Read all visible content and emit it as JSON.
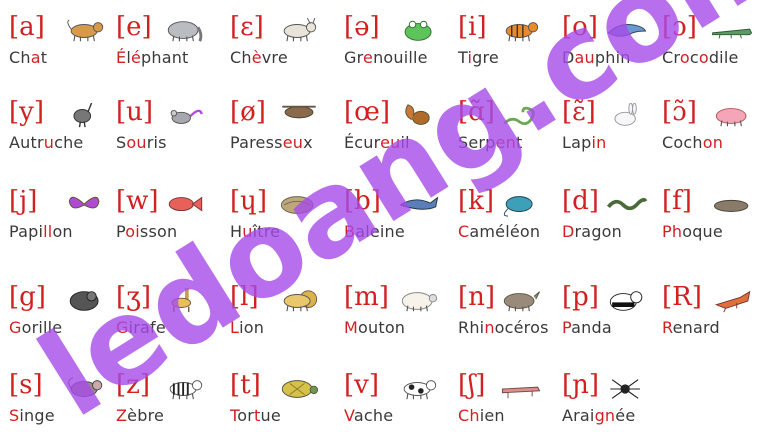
{
  "rows": [
    [
      {
        "ipa": "[a]",
        "animal": "cat-icon",
        "word": [
          [
            "Ch",
            0
          ],
          [
            "a",
            1
          ],
          [
            "t",
            0
          ]
        ]
      },
      {
        "ipa": "[e]",
        "animal": "elephant-icon",
        "word": [
          [
            "É",
            1
          ],
          [
            "l",
            0
          ],
          [
            "é",
            1
          ],
          [
            "phant",
            0
          ]
        ]
      },
      {
        "ipa": "[ɛ]",
        "animal": "goat-icon",
        "word": [
          [
            "Ch",
            0
          ],
          [
            "è",
            1
          ],
          [
            "vre",
            0
          ]
        ]
      },
      {
        "ipa": "[ə]",
        "animal": "frog-icon",
        "word": [
          [
            "Gr",
            0
          ],
          [
            "e",
            1
          ],
          [
            "nouille",
            0
          ]
        ]
      },
      {
        "ipa": "[i]",
        "animal": "tiger-icon",
        "word": [
          [
            "T",
            0
          ],
          [
            "i",
            1
          ],
          [
            "gre",
            0
          ]
        ]
      },
      {
        "ipa": "[o]",
        "animal": "dolphin-icon",
        "word": [
          [
            "D",
            0
          ],
          [
            "au",
            1
          ],
          [
            "phin",
            0
          ]
        ]
      },
      {
        "ipa": "[ɔ]",
        "animal": "crocodile-icon",
        "word": [
          [
            "Cr",
            0
          ],
          [
            "o",
            1
          ],
          [
            "c",
            0
          ],
          [
            "o",
            1
          ],
          [
            "dile",
            0
          ]
        ]
      }
    ],
    [
      {
        "ipa": "[y]",
        "animal": "ostrich-icon",
        "word": [
          [
            "Autr",
            0
          ],
          [
            "u",
            1
          ],
          [
            "che",
            0
          ]
        ]
      },
      {
        "ipa": "[u]",
        "animal": "mouse-icon",
        "word": [
          [
            "S",
            0
          ],
          [
            "ou",
            1
          ],
          [
            "ris",
            0
          ]
        ]
      },
      {
        "ipa": "[ø]",
        "animal": "sloth-icon",
        "word": [
          [
            "Paress",
            0
          ],
          [
            "eu",
            1
          ],
          [
            "x",
            0
          ]
        ]
      },
      {
        "ipa": "[œ]",
        "animal": "squirrel-icon",
        "word": [
          [
            "Écur",
            0
          ],
          [
            "eu",
            1
          ],
          [
            "il",
            0
          ]
        ]
      },
      {
        "ipa": "[ɑ̃]",
        "animal": "snake-icon",
        "word": [
          [
            "Serp",
            0
          ],
          [
            "en",
            1
          ],
          [
            "t",
            0
          ]
        ]
      },
      {
        "ipa": "[ɛ̃]",
        "animal": "rabbit-icon",
        "word": [
          [
            "Lap",
            0
          ],
          [
            "in",
            1
          ]
        ]
      },
      {
        "ipa": "[ɔ̃]",
        "animal": "pig-icon",
        "word": [
          [
            "Coch",
            0
          ],
          [
            "on",
            1
          ]
        ]
      }
    ],
    [
      {
        "ipa": "[j]",
        "animal": "butterfly-icon",
        "word": [
          [
            "Papi",
            0
          ],
          [
            "ll",
            1
          ],
          [
            "on",
            0
          ]
        ]
      },
      {
        "ipa": "[w]",
        "animal": "fish-icon",
        "word": [
          [
            "P",
            0
          ],
          [
            "oi",
            1
          ],
          [
            "sson",
            0
          ]
        ]
      },
      {
        "ipa": "[ɥ]",
        "animal": "oyster-icon",
        "word": [
          [
            "H",
            0
          ],
          [
            "u",
            1
          ],
          [
            "ître",
            0
          ]
        ]
      },
      {
        "ipa": "[b]",
        "animal": "whale-icon",
        "word": [
          [
            "B",
            1
          ],
          [
            "aleine",
            0
          ]
        ]
      },
      {
        "ipa": "[k]",
        "animal": "chameleon-icon",
        "word": [
          [
            "C",
            1
          ],
          [
            "améléon",
            0
          ]
        ]
      },
      {
        "ipa": "[d]",
        "animal": "dragon-icon",
        "word": [
          [
            "D",
            1
          ],
          [
            "ragon",
            0
          ]
        ]
      },
      {
        "ipa": "[f]",
        "animal": "seal-icon",
        "word": [
          [
            "Ph",
            1
          ],
          [
            "oque",
            0
          ]
        ]
      }
    ],
    [
      {
        "ipa": "[g]",
        "animal": "gorilla-icon",
        "word": [
          [
            "G",
            1
          ],
          [
            "orille",
            0
          ]
        ]
      },
      {
        "ipa": "[ʒ]",
        "animal": "giraffe-icon",
        "word": [
          [
            "G",
            1
          ],
          [
            "irafe",
            0
          ]
        ]
      },
      {
        "ipa": "[l]",
        "animal": "lion-icon",
        "word": [
          [
            "L",
            1
          ],
          [
            "ion",
            0
          ]
        ]
      },
      {
        "ipa": "[m]",
        "animal": "sheep-icon",
        "word": [
          [
            "M",
            1
          ],
          [
            "outon",
            0
          ]
        ]
      },
      {
        "ipa": "[n]",
        "animal": "rhinoceros-icon",
        "word": [
          [
            "Rhi",
            0
          ],
          [
            "n",
            1
          ],
          [
            "océros",
            0
          ]
        ]
      },
      {
        "ipa": "[p]",
        "animal": "panda-icon",
        "word": [
          [
            "P",
            1
          ],
          [
            "anda",
            0
          ]
        ]
      },
      {
        "ipa": "[R]",
        "animal": "fox-icon",
        "word": [
          [
            "R",
            1
          ],
          [
            "enard",
            0
          ]
        ]
      }
    ],
    [
      {
        "ipa": "[s]",
        "animal": "monkey-icon",
        "word": [
          [
            "S",
            1
          ],
          [
            "inge",
            0
          ]
        ]
      },
      {
        "ipa": "[z]",
        "animal": "zebra-icon",
        "word": [
          [
            "Z",
            1
          ],
          [
            "èbre",
            0
          ]
        ]
      },
      {
        "ipa": "[t]",
        "animal": "turtle-icon",
        "word": [
          [
            "T",
            1
          ],
          [
            "or",
            0
          ],
          [
            "t",
            1
          ],
          [
            "ue",
            0
          ]
        ]
      },
      {
        "ipa": "[v]",
        "animal": "cow-icon",
        "word": [
          [
            "V",
            1
          ],
          [
            "ache",
            0
          ]
        ]
      },
      {
        "ipa": "[ʃ]",
        "animal": "dog-icon",
        "word": [
          [
            "Ch",
            1
          ],
          [
            "ien",
            0
          ]
        ]
      },
      {
        "ipa": "[ɲ]",
        "animal": "spider-icon",
        "word": [
          [
            "Arai",
            0
          ],
          [
            "gn",
            1
          ],
          [
            "ée",
            0
          ]
        ]
      }
    ]
  ],
  "watermark": "ledoang.com",
  "colors": {
    "ipa": "#d21f1f",
    "text": "#3a3a3a",
    "watermark": "#a64be8"
  }
}
